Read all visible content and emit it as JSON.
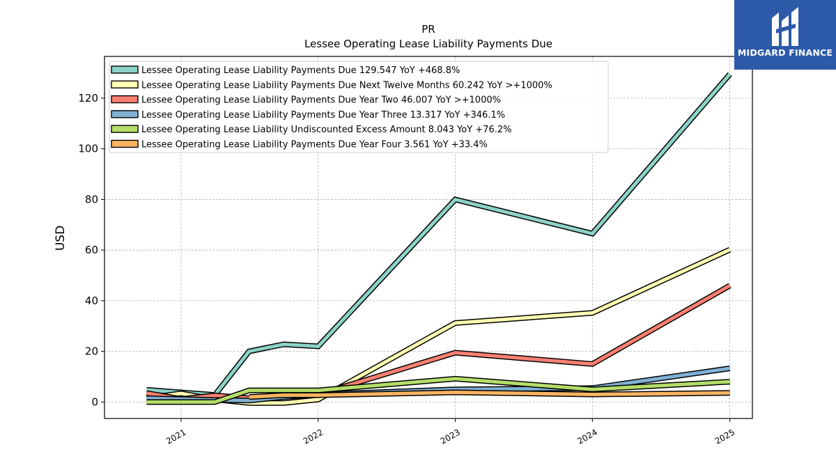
{
  "brand": {
    "name": "MIDGARD FINANCE",
    "background": "#2c5aa9"
  },
  "chart_data": {
    "type": "line",
    "title": "PR",
    "subtitle": "Lessee Operating Lease Liability Payments Due",
    "xlabel": "",
    "ylabel": "USD",
    "xlim": [
      "2020-06-10",
      "2025-03-01"
    ],
    "ylim": [
      -6.5,
      136.5
    ],
    "x_ticks": [
      {
        "x": "2020-12-31",
        "label": "2021"
      },
      {
        "x": "2021-12-31",
        "label": "2022"
      },
      {
        "x": "2022-12-31",
        "label": "2023"
      },
      {
        "x": "2023-12-31",
        "label": "2024"
      },
      {
        "x": "2024-12-31",
        "label": "2025"
      }
    ],
    "y_ticks": [
      0,
      20,
      40,
      60,
      80,
      100,
      120
    ],
    "grid": true,
    "legend_position": "upper-left",
    "series": [
      {
        "name": "Lessee Operating Lease Liability Payments Due",
        "legend_label": "Lessee Operating Lease Liability Payments Due  129.547 YoY +468.8%",
        "color": "#8dd3c7",
        "points": [
          [
            "2020-09-30",
            4.8
          ],
          [
            "2021-03-31",
            2.8
          ],
          [
            "2021-06-30",
            20.0
          ],
          [
            "2021-09-30",
            22.8
          ],
          [
            "2021-12-31",
            22.0
          ],
          [
            "2022-12-31",
            80.0
          ],
          [
            "2023-12-31",
            66.5
          ],
          [
            "2024-12-31",
            129.5
          ]
        ]
      },
      {
        "name": "Lessee Operating Lease Liability Payments Due Next Twelve Months",
        "legend_label": "Lessee Operating Lease Liability Payments Due Next Twelve Months  60.242 YoY >+1000%",
        "color": "#ffffb3",
        "points": [
          [
            "2020-09-30",
            1.5
          ],
          [
            "2020-12-31",
            3.4
          ],
          [
            "2021-03-31",
            1.0
          ],
          [
            "2021-06-30",
            -0.4
          ],
          [
            "2021-09-30",
            -0.4
          ],
          [
            "2021-12-31",
            1.0
          ],
          [
            "2022-12-31",
            31.2
          ],
          [
            "2023-12-31",
            35.2
          ],
          [
            "2024-12-31",
            60.2
          ]
        ]
      },
      {
        "name": "Lessee Operating Lease Liability Payments Due Year Two",
        "legend_label": "Lessee Operating Lease Liability Payments Due Year Two  46.007 YoY >+1000%",
        "color": "#fb8072",
        "points": [
          [
            "2020-09-30",
            3.5
          ],
          [
            "2020-12-31",
            1.2
          ],
          [
            "2021-03-31",
            2.6
          ],
          [
            "2021-06-30",
            1.5
          ],
          [
            "2021-09-30",
            2.0
          ],
          [
            "2021-12-31",
            3.0
          ],
          [
            "2022-12-31",
            19.5
          ],
          [
            "2023-12-31",
            15.0
          ],
          [
            "2024-12-31",
            46.0
          ]
        ]
      },
      {
        "name": "Lessee Operating Lease Liability Payments Due Year Three",
        "legend_label": "Lessee Operating Lease Liability Payments Due Year Three  13.317 YoY +346.1%",
        "color": "#80b1d3",
        "points": [
          [
            "2020-09-30",
            1.5
          ],
          [
            "2021-03-31",
            0.8
          ],
          [
            "2021-06-30",
            0.6
          ],
          [
            "2021-09-30",
            2.0
          ],
          [
            "2021-12-31",
            3.0
          ],
          [
            "2022-12-31",
            5.0
          ],
          [
            "2023-12-31",
            5.5
          ],
          [
            "2024-12-31",
            13.3
          ]
        ]
      },
      {
        "name": "Lessee Operating Lease Liability Undiscounted Excess Amount",
        "legend_label": "Lessee Operating Lease Liability Undiscounted Excess Amount  8.043 YoY +76.2%",
        "color": "#b3de69",
        "points": [
          [
            "2020-09-30",
            0.0
          ],
          [
            "2021-03-31",
            0.0
          ],
          [
            "2021-06-30",
            4.6
          ],
          [
            "2021-09-30",
            4.6
          ],
          [
            "2021-12-31",
            4.6
          ],
          [
            "2022-12-31",
            9.2
          ],
          [
            "2023-12-31",
            5.0
          ],
          [
            "2024-12-31",
            8.0
          ]
        ]
      },
      {
        "name": "Lessee Operating Lease Liability Payments Due Year Four",
        "legend_label": "Lessee Operating Lease Liability Payments Due Year Four  3.561 YoY +33.4%",
        "color": "#fdb462",
        "points": [
          [
            "2021-06-30",
            2.0
          ],
          [
            "2021-09-30",
            2.7
          ],
          [
            "2021-12-31",
            2.7
          ],
          [
            "2022-12-31",
            3.8
          ],
          [
            "2023-12-31",
            3.0
          ],
          [
            "2024-12-31",
            3.6
          ]
        ]
      }
    ]
  }
}
